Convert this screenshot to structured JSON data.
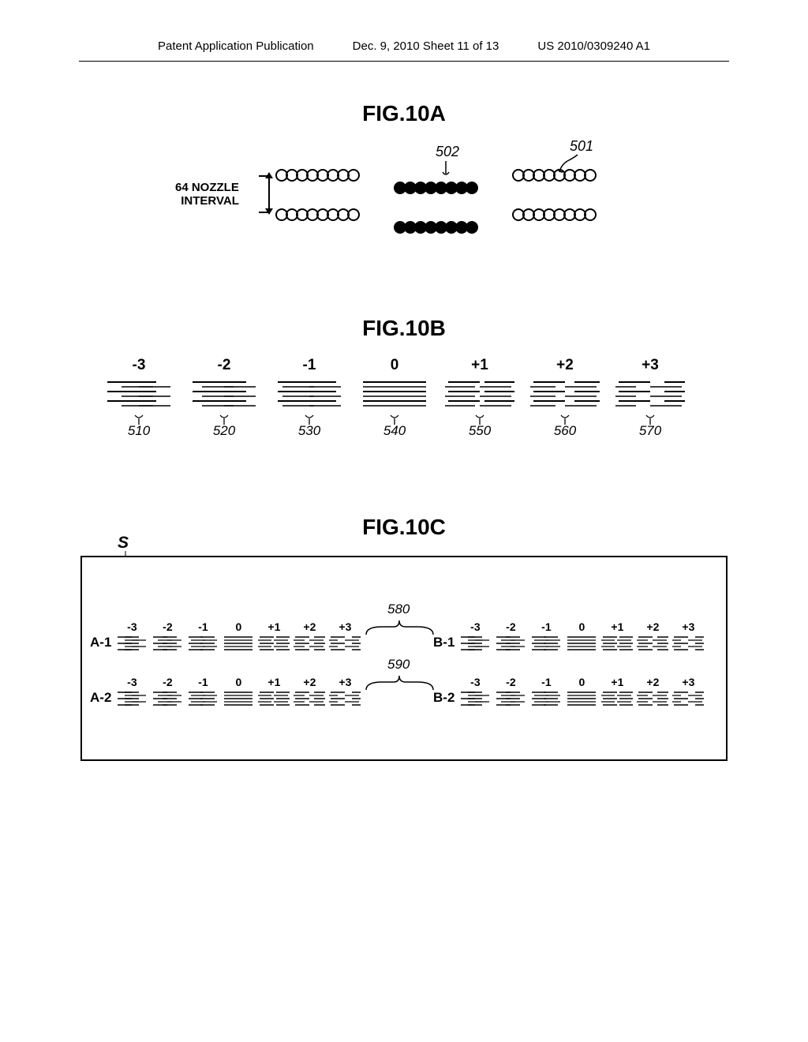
{
  "header": {
    "left": "Patent Application Publication",
    "center": "Dec. 9, 2010  Sheet 11 of 13",
    "right": "US 2010/0309240 A1"
  },
  "fig10a": {
    "title": "FIG.10A",
    "nozzle_label_line1": "64 NOZZLE",
    "nozzle_label_line2": "INTERVAL",
    "ref_501": "501",
    "ref_502": "502",
    "circle_count": 8
  },
  "fig10b": {
    "title": "FIG.10B",
    "columns": [
      {
        "num": "-3",
        "ref": "510"
      },
      {
        "num": "-2",
        "ref": "520"
      },
      {
        "num": "-1",
        "ref": "530"
      },
      {
        "num": "0",
        "ref": "540"
      },
      {
        "num": "+1",
        "ref": "550"
      },
      {
        "num": "+2",
        "ref": "560"
      },
      {
        "num": "+3",
        "ref": "570"
      }
    ],
    "pattern_rows": 6,
    "line_color": "#000000"
  },
  "fig10c": {
    "title": "FIG.10C",
    "s_label": "S",
    "ref_580": "580",
    "ref_590": "590",
    "groups": [
      {
        "label": "A-1"
      },
      {
        "label": "B-1"
      },
      {
        "label": "A-2"
      },
      {
        "label": "B-2"
      }
    ],
    "nums": [
      "-3",
      "-2",
      "-1",
      "0",
      "+1",
      "+2",
      "+3"
    ]
  }
}
